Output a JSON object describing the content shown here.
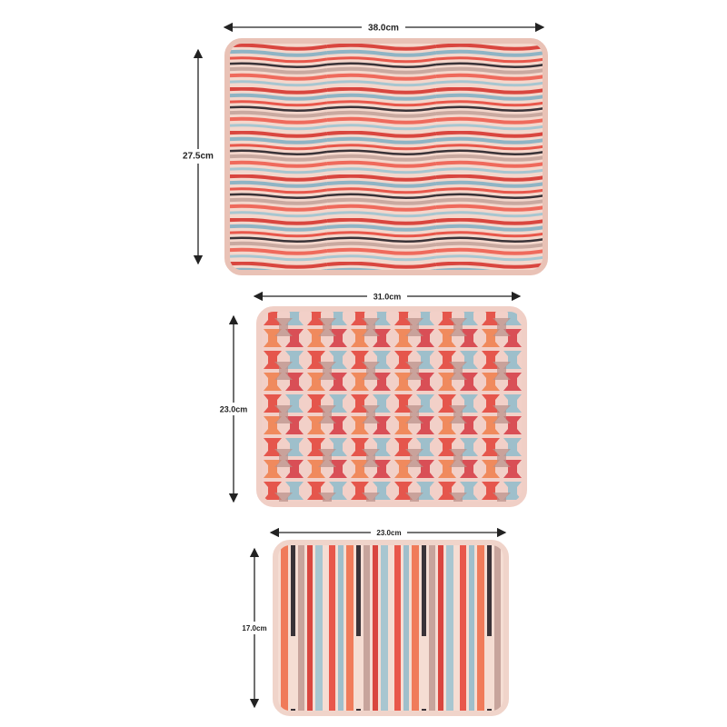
{
  "trays": [
    {
      "width_label": "38.0cm",
      "height_label": "27.5cm"
    },
    {
      "width_label": "31.0cm",
      "height_label": "23.0cm"
    },
    {
      "width_label": "23.0cm",
      "height_label": "17.0cm"
    }
  ]
}
